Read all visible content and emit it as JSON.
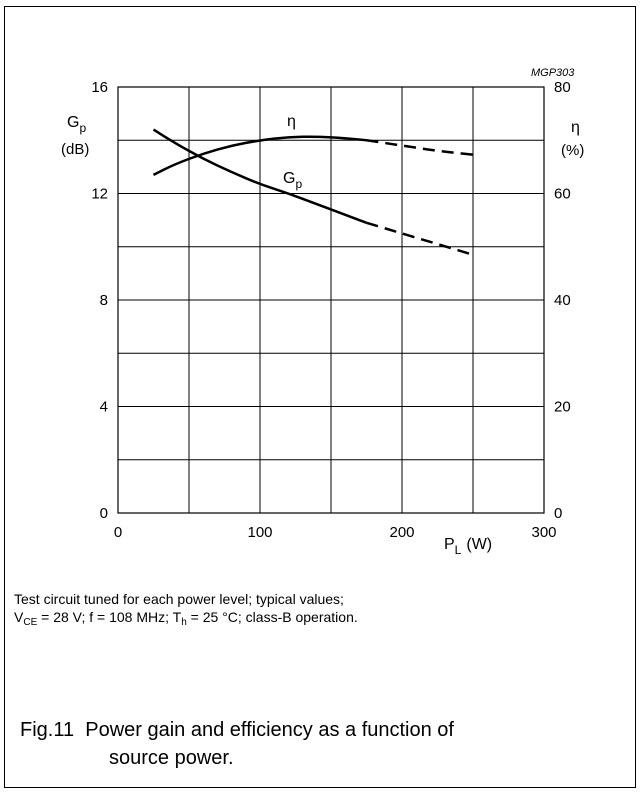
{
  "chart_data": {
    "type": "line",
    "code": "MGP303",
    "xlabel_main": "P",
    "xlabel_sub": "L",
    "xlabel_unit": "(W)",
    "ylabel_left_main": "G",
    "ylabel_left_sub": "p",
    "ylabel_left_unit": "(dB)",
    "ylabel_right_main": "η",
    "ylabel_right_unit": "(%)",
    "xlim": [
      0,
      300
    ],
    "ylim_left": [
      0,
      16
    ],
    "ylim_right": [
      0,
      80
    ],
    "x_ticks": [
      "0",
      "100",
      "200",
      "300"
    ],
    "y_ticks_left": [
      "0",
      "4",
      "8",
      "12",
      "16"
    ],
    "y_ticks_right": [
      "0",
      "20",
      "40",
      "60",
      "80"
    ],
    "grid": true,
    "series": [
      {
        "name": "G",
        "name_sub": "p",
        "axis": "left",
        "solid": [
          [
            25,
            14.4
          ],
          [
            40,
            13.9
          ],
          [
            60,
            13.3
          ],
          [
            80,
            12.8
          ],
          [
            100,
            12.35
          ],
          [
            120,
            12.0
          ],
          [
            140,
            11.6
          ],
          [
            160,
            11.2
          ],
          [
            175,
            10.9
          ]
        ],
        "dashed": [
          [
            175,
            10.9
          ],
          [
            200,
            10.5
          ],
          [
            225,
            10.1
          ],
          [
            250,
            9.7
          ]
        ]
      },
      {
        "name": "η",
        "axis": "right",
        "solid": [
          [
            25,
            63.5
          ],
          [
            40,
            65.5
          ],
          [
            60,
            67.5
          ],
          [
            80,
            69.0
          ],
          [
            100,
            70.0
          ],
          [
            120,
            70.6
          ],
          [
            140,
            70.7
          ],
          [
            160,
            70.4
          ],
          [
            175,
            70.0
          ]
        ],
        "dashed": [
          [
            175,
            70.0
          ],
          [
            200,
            69.0
          ],
          [
            225,
            68.0
          ],
          [
            250,
            67.3
          ]
        ]
      }
    ]
  },
  "note": {
    "line1": "Test circuit tuned for each power level; typical values;",
    "line2_a": "V",
    "line2_a_sub": "CE",
    "line2_b": " = 28 V; f = 108 MHz; T",
    "line2_b_sub": "h",
    "line2_c": " = 25 °C; class-B operation."
  },
  "caption": {
    "fig": "Fig.11",
    "line1": "Power gain and efficiency as a function of",
    "line2": "source power."
  }
}
